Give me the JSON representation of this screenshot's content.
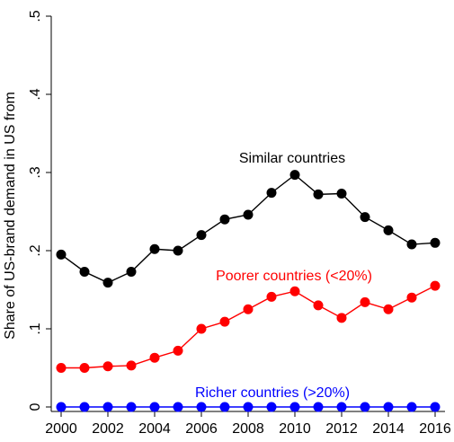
{
  "chart_data": {
    "type": "line",
    "ylabel": "Share of US-brand demand in US from",
    "x": [
      2000,
      2001,
      2002,
      2003,
      2004,
      2005,
      2006,
      2007,
      2008,
      2009,
      2010,
      2011,
      2012,
      2013,
      2014,
      2015,
      2016
    ],
    "xticks": [
      2000,
      2002,
      2004,
      2006,
      2008,
      2010,
      2012,
      2014,
      2016
    ],
    "xlim": [
      1999.6,
      2016.4
    ],
    "yticks": [
      0,
      0.1,
      0.2,
      0.3,
      0.4,
      0.5
    ],
    "ytick_labels": [
      "0",
      ".1",
      ".2",
      ".3",
      ".4",
      ".5"
    ],
    "ylim": [
      -0.005,
      0.5
    ],
    "grid": false,
    "series": [
      {
        "name": "Similar countries",
        "color": "#000000",
        "values": [
          0.195,
          0.173,
          0.159,
          0.173,
          0.202,
          0.2,
          0.22,
          0.24,
          0.246,
          0.274,
          0.297,
          0.272,
          0.273,
          0.243,
          0.226,
          0.208,
          0.21
        ]
      },
      {
        "name": "Poorer countries (<20%)",
        "color": "#ff0000",
        "values": [
          0.05,
          0.05,
          0.052,
          0.053,
          0.063,
          0.072,
          0.1,
          0.109,
          0.125,
          0.141,
          0.148,
          0.13,
          0.114,
          0.134,
          0.125,
          0.14,
          0.155
        ]
      },
      {
        "name": "Richer countries (>20%)",
        "color": "#0000ff",
        "values": [
          0,
          0,
          0,
          0,
          0,
          0,
          0,
          0,
          0,
          0,
          0,
          0,
          0,
          0,
          0,
          0,
          0
        ]
      }
    ]
  }
}
